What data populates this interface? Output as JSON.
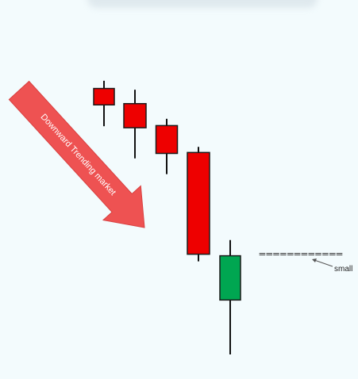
{
  "chart_data": {
    "type": "candlestick",
    "title": "",
    "xlabel": "",
    "ylabel": "",
    "axes_visible": false,
    "grid": false,
    "ylim": [
      0,
      100
    ],
    "candles": [
      {
        "open": 86.0,
        "high": 88.5,
        "low": 73.8,
        "close": 80.7,
        "direction": "down"
      },
      {
        "open": 81.1,
        "high": 85.6,
        "low": 63.4,
        "close": 73.3,
        "direction": "down"
      },
      {
        "open": 74.0,
        "high": 76.2,
        "low": 58.3,
        "close": 65.0,
        "direction": "down"
      },
      {
        "open": 65.3,
        "high": 67.1,
        "low": 30.1,
        "close": 32.4,
        "direction": "down"
      },
      {
        "open": 17.6,
        "high": 37.0,
        "low": 0.0,
        "close": 31.9,
        "direction": "up"
      }
    ],
    "colors": {
      "down": "#ee0000",
      "up": "#00a651",
      "wick": "#111111",
      "body_outline": "#1a1a1a"
    },
    "annotations": {
      "arrow_label": "Downward Trending market",
      "arrow_color": "#ee5252",
      "dashed_line": "============",
      "pointer_label": "small"
    }
  }
}
